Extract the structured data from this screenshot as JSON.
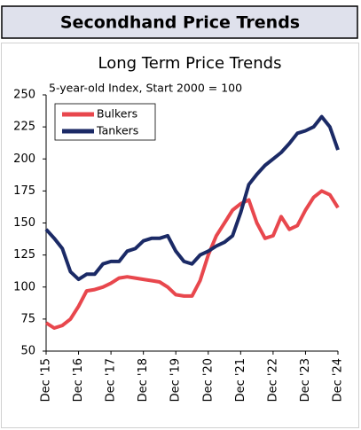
{
  "header": {
    "title": "Secondhand Price Trends"
  },
  "chart_data": {
    "type": "line",
    "title": "Long Term Price Trends",
    "subtitle": "5-year-old Index, Start 2000 = 100",
    "categories": [
      "Dec '15",
      null,
      null,
      null,
      "Dec '16",
      null,
      null,
      null,
      "Dec '17",
      null,
      null,
      null,
      "Dec '18",
      null,
      null,
      null,
      "Dec '19",
      null,
      null,
      null,
      "Dec '20",
      null,
      null,
      null,
      "Dec '21",
      null,
      null,
      null,
      "Dec '22",
      null,
      null,
      null,
      "Dec '23",
      null,
      null,
      null,
      "Dec '24"
    ],
    "series": [
      {
        "name": "Bulkers",
        "color": "#e8474d",
        "values": [
          72,
          68,
          70,
          75,
          85,
          97,
          98,
          100,
          103,
          107,
          108,
          107,
          106,
          105,
          104,
          100,
          94,
          93,
          93,
          105,
          125,
          140,
          150,
          160,
          165,
          168,
          150,
          138,
          140,
          155,
          145,
          148,
          160,
          170,
          175,
          172,
          162
        ]
      },
      {
        "name": "Tankers",
        "color": "#1b2a66",
        "values": [
          145,
          138,
          130,
          112,
          106,
          110,
          110,
          118,
          120,
          120,
          128,
          130,
          136,
          138,
          138,
          140,
          128,
          120,
          118,
          125,
          128,
          132,
          135,
          140,
          158,
          180,
          188,
          195,
          200,
          205,
          212,
          220,
          222,
          225,
          233,
          225,
          207
        ]
      }
    ],
    "ylim": [
      50,
      250
    ],
    "yticks": [
      50,
      75,
      100,
      125,
      150,
      175,
      200,
      225,
      250
    ],
    "grid": false,
    "legend": "top-left"
  }
}
